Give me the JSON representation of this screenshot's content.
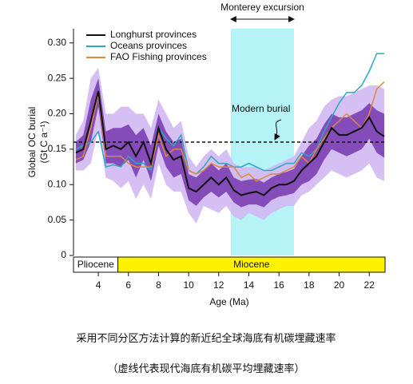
{
  "chart_data": {
    "type": "line",
    "y_label": "Global OC burial",
    "y_label_unit": "(Gt C a⁻¹)",
    "x_label": "Age (Ma)",
    "xlim": [
      2.35,
      23.05
    ],
    "ylim": [
      0,
      0.32
    ],
    "xticks": [
      4,
      6,
      8,
      10,
      12,
      14,
      16,
      18,
      20,
      22
    ],
    "yticks": [
      0,
      0.05,
      {
        "value": 0.1,
        "label": "0.10"
      },
      0.15,
      {
        "value": 0.2,
        "label": "0.20"
      },
      0.25,
      {
        "value": 0.3,
        "label": "0.30"
      }
    ],
    "x": [
      2.5,
      3,
      3.5,
      4,
      4.5,
      5,
      5.5,
      6,
      6.5,
      7,
      7.5,
      8,
      8.5,
      9,
      9.5,
      10,
      10.5,
      11,
      11.5,
      12,
      12.5,
      13,
      13.5,
      14,
      14.5,
      15,
      15.5,
      16,
      16.5,
      17,
      17.5,
      18,
      18.5,
      19,
      19.5,
      20,
      20.5,
      21,
      21.5,
      22,
      22.5,
      23
    ],
    "series": [
      {
        "name": "Longhurst provinces",
        "color": "#111111",
        "values": [
          0.145,
          0.15,
          0.19,
          0.232,
          0.15,
          0.155,
          0.15,
          0.16,
          0.14,
          0.16,
          0.13,
          0.18,
          0.15,
          0.135,
          0.14,
          0.095,
          0.09,
          0.1,
          0.11,
          0.1,
          0.11,
          0.092,
          0.085,
          0.088,
          0.09,
          0.085,
          0.095,
          0.1,
          0.1,
          0.105,
          0.12,
          0.13,
          0.14,
          0.16,
          0.18,
          0.17,
          0.17,
          0.175,
          0.18,
          0.195,
          0.175,
          0.168
        ]
      },
      {
        "name": "Oceans provinces",
        "color": "#2aa8c4",
        "values": [
          0.15,
          0.155,
          0.16,
          0.175,
          0.125,
          0.128,
          0.125,
          0.14,
          0.13,
          0.13,
          0.12,
          0.18,
          0.165,
          0.155,
          0.17,
          0.12,
          0.115,
          0.125,
          0.14,
          0.13,
          0.13,
          0.125,
          0.125,
          0.13,
          0.125,
          0.12,
          0.12,
          0.125,
          0.13,
          0.13,
          0.145,
          0.14,
          0.15,
          0.175,
          0.195,
          0.215,
          0.23,
          0.23,
          0.24,
          0.26,
          0.285,
          0.285
        ]
      },
      {
        "name": "FAO Fishing provinces",
        "color": "#e0873a",
        "values": [
          0.135,
          0.14,
          0.18,
          0.228,
          0.14,
          0.14,
          0.14,
          0.13,
          0.125,
          0.125,
          0.125,
          0.17,
          0.14,
          0.15,
          0.15,
          0.12,
          0.115,
          0.12,
          0.13,
          0.125,
          0.125,
          0.125,
          0.11,
          0.115,
          0.105,
          0.11,
          0.115,
          0.115,
          0.12,
          0.125,
          0.14,
          0.13,
          0.15,
          0.165,
          0.18,
          0.19,
          0.2,
          0.19,
          0.18,
          0.2,
          0.235,
          0.245
        ]
      }
    ],
    "bands": [
      {
        "color": "#d2b8f2",
        "upper": [
          0.17,
          0.19,
          0.25,
          0.265,
          0.2,
          0.2,
          0.21,
          0.21,
          0.2,
          0.2,
          0.18,
          0.22,
          0.2,
          0.18,
          0.19,
          0.14,
          0.125,
          0.14,
          0.15,
          0.14,
          0.15,
          0.13,
          0.125,
          0.125,
          0.125,
          0.12,
          0.125,
          0.13,
          0.135,
          0.14,
          0.16,
          0.18,
          0.19,
          0.21,
          0.22,
          0.225,
          0.225,
          0.23,
          0.235,
          0.24,
          0.24,
          0.235
        ],
        "lower": [
          0.12,
          0.12,
          0.13,
          0.18,
          0.11,
          0.105,
          0.095,
          0.105,
          0.08,
          0.1,
          0.08,
          0.13,
          0.1,
          0.09,
          0.09,
          0.06,
          0.045,
          0.07,
          0.065,
          0.06,
          0.07,
          0.055,
          0.05,
          0.06,
          0.055,
          0.05,
          0.06,
          0.065,
          0.07,
          0.07,
          0.085,
          0.09,
          0.1,
          0.11,
          0.12,
          0.115,
          0.11,
          0.115,
          0.12,
          0.13,
          0.11,
          0.105
        ]
      },
      {
        "color": "#7b3fb3",
        "upper": [
          0.16,
          0.17,
          0.22,
          0.25,
          0.175,
          0.18,
          0.18,
          0.185,
          0.17,
          0.18,
          0.155,
          0.2,
          0.175,
          0.16,
          0.165,
          0.115,
          0.11,
          0.12,
          0.13,
          0.12,
          0.13,
          0.11,
          0.105,
          0.107,
          0.108,
          0.103,
          0.11,
          0.115,
          0.118,
          0.122,
          0.14,
          0.155,
          0.165,
          0.185,
          0.2,
          0.195,
          0.195,
          0.2,
          0.205,
          0.215,
          0.205,
          0.2
        ],
        "lower": [
          0.13,
          0.135,
          0.16,
          0.21,
          0.13,
          0.13,
          0.125,
          0.135,
          0.11,
          0.135,
          0.105,
          0.155,
          0.125,
          0.11,
          0.115,
          0.078,
          0.07,
          0.082,
          0.09,
          0.082,
          0.09,
          0.075,
          0.068,
          0.072,
          0.072,
          0.068,
          0.078,
          0.083,
          0.085,
          0.088,
          0.1,
          0.105,
          0.115,
          0.135,
          0.15,
          0.145,
          0.14,
          0.145,
          0.15,
          0.165,
          0.145,
          0.138
        ]
      }
    ],
    "modern": {
      "label": "Modern burial",
      "value": 0.16
    },
    "monterey": {
      "label": "Monterey excursion",
      "start": 12.8,
      "end": 17.0
    },
    "epochs": [
      "Pliocene",
      "Miocene"
    ],
    "epoch_boundary": 5.3,
    "caption": [
      "采用不同分区方法计算的新近纪全球海底有机碳埋藏速率",
      "（虚线代表现代海底有机碳平均埋藏速率）"
    ]
  }
}
